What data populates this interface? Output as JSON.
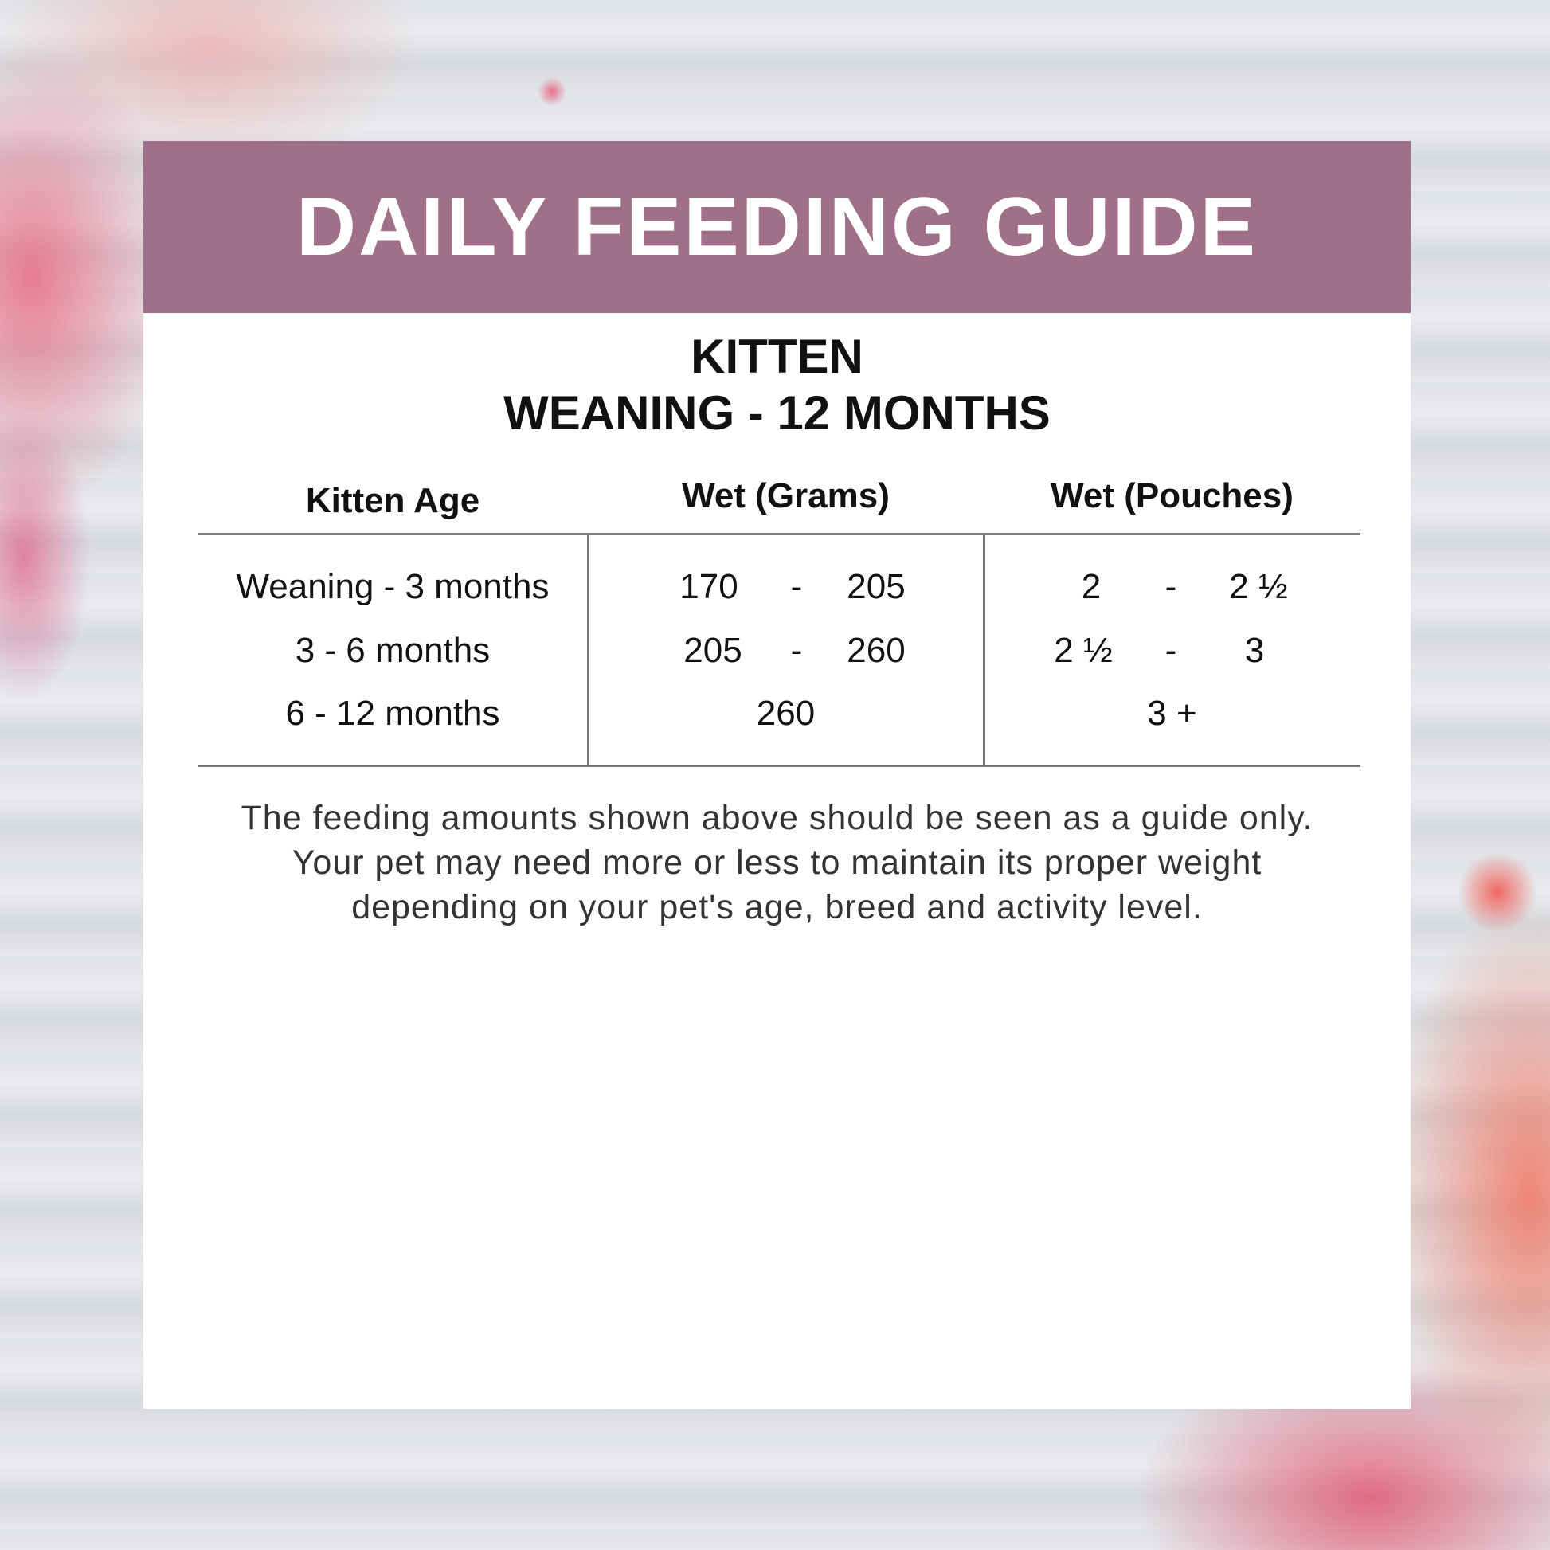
{
  "header": {
    "title": "DAILY FEEDING GUIDE"
  },
  "subtitle": {
    "line1": "KITTEN",
    "line2": "WEANING - 12 MONTHS"
  },
  "table": {
    "headers": [
      "Kitten Age",
      "Wet (Grams)",
      "Wet (Pouches)"
    ],
    "rows": [
      {
        "age": "Weaning - 3 months",
        "grams_min": "170",
        "grams_max": "205",
        "pouches_min": "2",
        "pouches_max": "2 ½"
      },
      {
        "age": "3 - 6 months",
        "grams_min": "205",
        "grams_max": "260",
        "pouches_min": "2 ½",
        "pouches_max": "3"
      },
      {
        "age": "6 - 12 months",
        "grams": "260",
        "pouches": "3 +"
      }
    ],
    "dash": "-"
  },
  "note": "The feeding amounts shown above should be seen as a guide only. Your pet may need more or less to maintain its proper weight depending on your pet's age, breed and activity level.",
  "colors": {
    "header_bg": "#a07089",
    "card_bg": "#ffffff"
  }
}
